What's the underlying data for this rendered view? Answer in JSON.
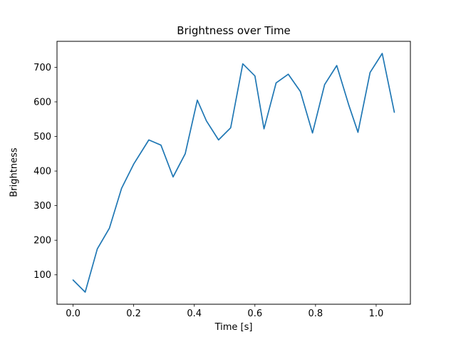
{
  "chart_data": {
    "type": "line",
    "title": "Brightness over Time",
    "xlabel": "Time [s]",
    "ylabel": "Brightness",
    "line_color": "#1f77b4",
    "background": "#ffffff",
    "grid": false,
    "legend": "none",
    "xlim": [
      -0.053,
      1.113
    ],
    "ylim": [
      15,
      775
    ],
    "xticks": [
      0.0,
      0.2,
      0.4,
      0.6,
      0.8,
      1.0
    ],
    "xtick_labels": [
      "0.0",
      "0.2",
      "0.4",
      "0.6",
      "0.8",
      "1.0"
    ],
    "yticks": [
      100,
      200,
      300,
      400,
      500,
      600,
      700
    ],
    "x": [
      0.0,
      0.04,
      0.08,
      0.12,
      0.16,
      0.2,
      0.25,
      0.29,
      0.33,
      0.37,
      0.41,
      0.44,
      0.48,
      0.52,
      0.56,
      0.6,
      0.63,
      0.67,
      0.71,
      0.75,
      0.79,
      0.83,
      0.87,
      0.91,
      0.94,
      0.98,
      1.02,
      1.06
    ],
    "y": [
      85,
      50,
      175,
      235,
      350,
      420,
      490,
      475,
      383,
      450,
      605,
      545,
      490,
      525,
      710,
      675,
      522,
      655,
      680,
      630,
      510,
      650,
      705,
      590,
      512,
      685,
      740,
      570
    ]
  }
}
